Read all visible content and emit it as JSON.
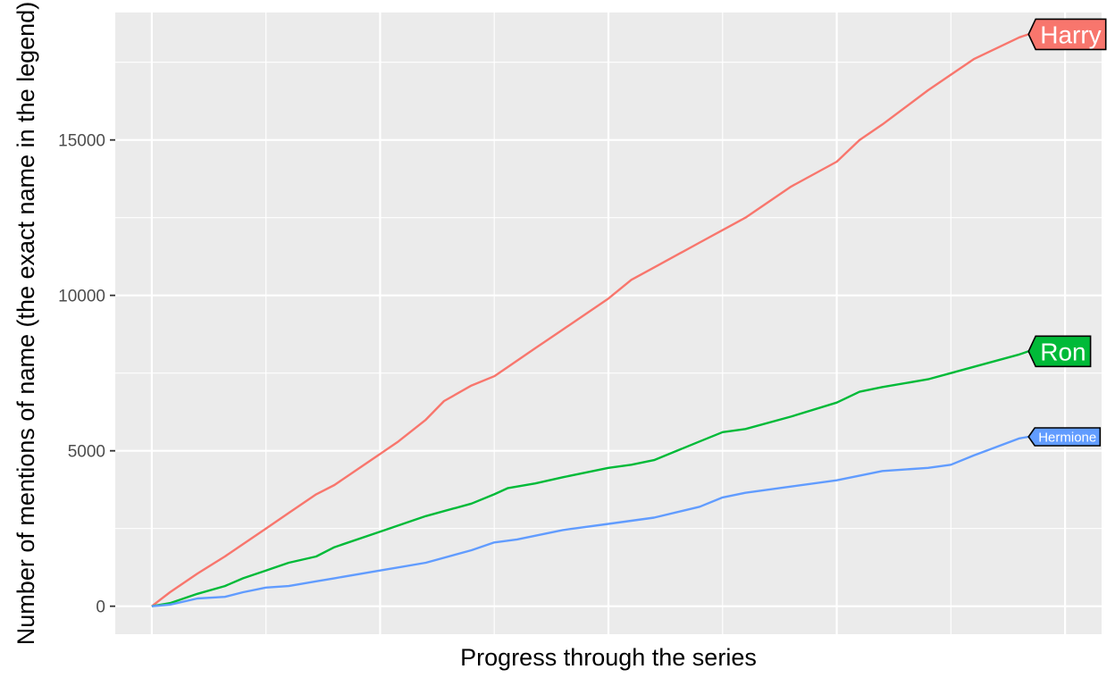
{
  "chart_data": {
    "type": "line",
    "title": "",
    "xlabel": "Progress through the series",
    "ylabel": "Number of mentions of name (the exact name in the legend)",
    "xlim": [
      -0.04,
      1.04
    ],
    "ylim": [
      -900,
      19100
    ],
    "yticks": [
      0,
      5000,
      10000,
      15000
    ],
    "ytick_labels": [
      "0",
      "5000",
      "10000",
      "15000"
    ],
    "x_gridlines": [
      0,
      0.25,
      0.5,
      0.75,
      1.0
    ],
    "x_minor_gridlines": [
      0.125,
      0.375,
      0.625,
      0.875
    ],
    "grid": true,
    "legend": "labels at line ends",
    "series": [
      {
        "name": "Harry",
        "color": "#F8766D",
        "label_size": "large",
        "x": [
          0,
          0.02,
          0.05,
          0.08,
          0.1,
          0.125,
          0.15,
          0.18,
          0.2,
          0.25,
          0.27,
          0.3,
          0.32,
          0.35,
          0.375,
          0.39,
          0.42,
          0.45,
          0.5,
          0.525,
          0.55,
          0.6,
          0.625,
          0.65,
          0.7,
          0.75,
          0.775,
          0.8,
          0.85,
          0.875,
          0.9,
          0.95,
          0.96
        ],
        "y": [
          0,
          450,
          1050,
          1600,
          2000,
          2500,
          3000,
          3600,
          3900,
          4900,
          5300,
          6000,
          6600,
          7100,
          7400,
          7700,
          8300,
          8900,
          9900,
          10500,
          10900,
          11700,
          12100,
          12500,
          13500,
          14300,
          15000,
          15500,
          16600,
          17100,
          17600,
          18300,
          18400
        ]
      },
      {
        "name": "Ron",
        "color": "#00BA38",
        "label_size": "large",
        "x": [
          0,
          0.02,
          0.05,
          0.08,
          0.1,
          0.125,
          0.15,
          0.18,
          0.2,
          0.25,
          0.28,
          0.3,
          0.35,
          0.375,
          0.39,
          0.42,
          0.45,
          0.5,
          0.525,
          0.55,
          0.6,
          0.625,
          0.65,
          0.7,
          0.75,
          0.775,
          0.8,
          0.85,
          0.875,
          0.9,
          0.95,
          0.96
        ],
        "y": [
          0,
          100,
          400,
          650,
          900,
          1150,
          1400,
          1600,
          1900,
          2400,
          2700,
          2900,
          3300,
          3600,
          3800,
          3950,
          4150,
          4450,
          4550,
          4700,
          5300,
          5600,
          5700,
          6100,
          6550,
          6900,
          7050,
          7300,
          7500,
          7700,
          8100,
          8200
        ]
      },
      {
        "name": "Hermione",
        "color": "#619CFF",
        "label_size": "small",
        "x": [
          0,
          0.02,
          0.05,
          0.08,
          0.1,
          0.125,
          0.15,
          0.18,
          0.2,
          0.25,
          0.3,
          0.35,
          0.375,
          0.4,
          0.45,
          0.5,
          0.525,
          0.55,
          0.6,
          0.625,
          0.65,
          0.7,
          0.75,
          0.8,
          0.85,
          0.875,
          0.9,
          0.95,
          0.96
        ],
        "y": [
          0,
          50,
          250,
          300,
          450,
          600,
          650,
          800,
          900,
          1150,
          1400,
          1800,
          2050,
          2150,
          2450,
          2650,
          2750,
          2850,
          3200,
          3500,
          3650,
          3850,
          4050,
          4350,
          4450,
          4550,
          4850,
          5400,
          5450
        ]
      }
    ]
  }
}
